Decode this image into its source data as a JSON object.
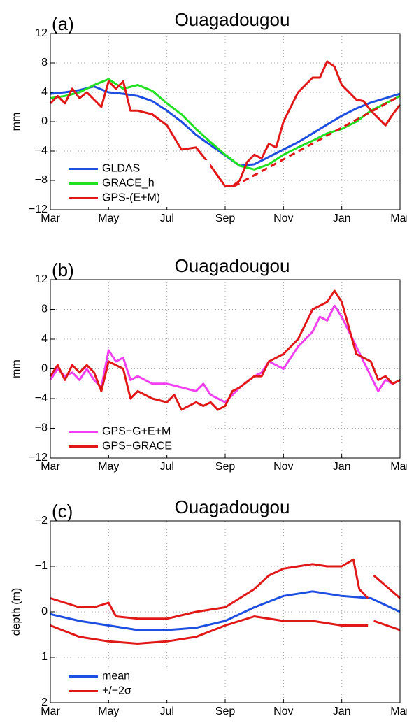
{
  "chart_data": [
    {
      "type": "line",
      "panel_label": "(a)",
      "title": "Ouagadougou",
      "ylabel": "mm",
      "xlim": [
        0,
        12
      ],
      "ylim": [
        -12,
        12
      ],
      "xticks": [
        {
          "value": 0,
          "label": "Mar"
        },
        {
          "value": 2,
          "label": "May"
        },
        {
          "value": 4,
          "label": "Jul"
        },
        {
          "value": 6,
          "label": "Sep"
        },
        {
          "value": 8,
          "label": "Nov"
        },
        {
          "value": 10,
          "label": "Jan"
        },
        {
          "value": 12,
          "label": "Mar"
        }
      ],
      "yticks": [
        {
          "value": -12,
          "label": "−12"
        },
        {
          "value": -8,
          "label": "−8"
        },
        {
          "value": -4,
          "label": "−4"
        },
        0,
        4,
        8,
        12
      ],
      "grid": true,
      "legend": "lower left",
      "series": [
        {
          "name": "GLDAS",
          "color": "#1f4fe0",
          "x": [
            0,
            0.5,
            1,
            1.5,
            2,
            2.5,
            3,
            3.5,
            4,
            4.5,
            5,
            5.5,
            6,
            6.5,
            7,
            7.5,
            8,
            8.5,
            9,
            9.5,
            10,
            10.5,
            11,
            11.5,
            12
          ],
          "values": [
            3.8,
            4.0,
            4.3,
            4.8,
            4.0,
            3.8,
            3.5,
            2.8,
            1.5,
            0,
            -1.8,
            -3.2,
            -4.6,
            -6.0,
            -5.8,
            -4.8,
            -3.8,
            -2.8,
            -1.6,
            -0.4,
            0.8,
            1.8,
            2.6,
            3.2,
            3.8
          ]
        },
        {
          "name": "GRACE_h",
          "color": "#22e022",
          "x": [
            0,
            0.5,
            1,
            1.5,
            2,
            2.5,
            3,
            3.5,
            4,
            4.5,
            5,
            5.5,
            6,
            6.5,
            7,
            7.5,
            8,
            8.5,
            9,
            9.5,
            10,
            10.5,
            11,
            11.5,
            12
          ],
          "values": [
            3.2,
            3.5,
            4.0,
            5.0,
            5.8,
            4.5,
            5.0,
            4.2,
            2.5,
            1.0,
            -1.0,
            -2.8,
            -4.5,
            -6.0,
            -6.5,
            -5.8,
            -4.5,
            -3.5,
            -2.6,
            -1.6,
            -1.0,
            0,
            1.5,
            2.5,
            3.5
          ]
        },
        {
          "name": "GPS-(E+M)",
          "color": "#e01818",
          "x": [
            0,
            0.25,
            0.5,
            0.75,
            1,
            1.25,
            1.5,
            1.75,
            2,
            2.25,
            2.5,
            2.75,
            3,
            3.5,
            4,
            4.5,
            5,
            5.5,
            6,
            6.25,
            6.5,
            6.75,
            7,
            7.25,
            7.5,
            7.75,
            8,
            8.5,
            9,
            9.25,
            9.5,
            9.75,
            10,
            10.5,
            10.75,
            11,
            11.25,
            11.5,
            11.75,
            12
          ],
          "values": [
            2.5,
            3.5,
            2.5,
            4.5,
            3.2,
            4.0,
            3.0,
            2.0,
            5.5,
            4.5,
            5.5,
            1.5,
            1.5,
            1.0,
            -0.5,
            -3.8,
            -3.5,
            -6.0,
            -8.8,
            -8.8,
            -8.0,
            -5.5,
            -4.5,
            -5.0,
            -3.0,
            -3.5,
            0,
            4,
            6,
            6,
            8.2,
            7.5,
            5,
            3,
            2.8,
            1.5,
            0.5,
            -0.5,
            1,
            2.3
          ]
        },
        {
          "color": "#e01818",
          "dashed": true,
          "x": [
            6.3,
            12
          ],
          "values": [
            -8.8,
            3.5
          ]
        }
      ]
    },
    {
      "type": "line",
      "panel_label": "(b)",
      "title": "Ouagadougou",
      "ylabel": "mm",
      "xlim": [
        0,
        12
      ],
      "ylim": [
        -12,
        12
      ],
      "xticks": [
        {
          "value": 0,
          "label": "Mar"
        },
        {
          "value": 2,
          "label": "May"
        },
        {
          "value": 4,
          "label": "Jul"
        },
        {
          "value": 6,
          "label": "Sep"
        },
        {
          "value": 8,
          "label": "Nov"
        },
        {
          "value": 10,
          "label": "Jan"
        },
        {
          "value": 12,
          "label": "Mar"
        }
      ],
      "yticks": [
        {
          "value": -12,
          "label": "−12"
        },
        {
          "value": -8,
          "label": "−8"
        },
        {
          "value": -4,
          "label": "−4"
        },
        0,
        4,
        8,
        12
      ],
      "grid": true,
      "legend": "lower left",
      "series": [
        {
          "name": "GPS−G+E+M",
          "color": "#f040f0",
          "x": [
            0,
            0.25,
            0.5,
            0.75,
            1,
            1.25,
            1.5,
            1.75,
            2,
            2.25,
            2.5,
            2.75,
            3,
            3.5,
            4,
            4.5,
            5,
            5.25,
            5.5,
            6,
            6.25,
            6.5,
            7,
            7.25,
            7.5,
            8,
            8.5,
            9,
            9.25,
            9.5,
            9.75,
            10,
            10.5,
            11,
            11.25,
            11.5,
            11.75,
            12
          ],
          "values": [
            -1.5,
            0,
            -1,
            -0.5,
            -1.5,
            0,
            -1.5,
            -2.5,
            2.5,
            1,
            1.5,
            -1.5,
            -1,
            -2,
            -2,
            -2.5,
            -3,
            -2,
            -3.5,
            -4.5,
            -3.5,
            -2.5,
            -1,
            -0.5,
            1,
            0,
            3,
            5,
            7,
            6.5,
            8.5,
            7,
            3,
            -1,
            -3,
            -1.5,
            -2,
            -1.5
          ]
        },
        {
          "name": "GPS−GRACE",
          "color": "#e01818",
          "x": [
            0,
            0.25,
            0.5,
            0.75,
            1,
            1.25,
            1.5,
            1.75,
            2,
            2.25,
            2.5,
            2.75,
            3,
            3.5,
            4,
            4.25,
            4.5,
            5,
            5.25,
            5.5,
            5.75,
            6,
            6.25,
            6.5,
            7,
            7.25,
            7.5,
            8,
            8.5,
            9,
            9.5,
            9.75,
            10,
            10.5,
            11,
            11.25,
            11.5,
            11.75,
            12
          ],
          "values": [
            -1,
            0.5,
            -1.5,
            0.5,
            -0.5,
            0.5,
            -0.5,
            -3,
            1,
            0.5,
            0,
            -4,
            -3,
            -4,
            -4.5,
            -3.5,
            -5.5,
            -4.5,
            -5,
            -4.5,
            -5.5,
            -5,
            -3,
            -2.5,
            -1,
            -1,
            1,
            2,
            4,
            8,
            9,
            10.5,
            9,
            2,
            1,
            -1.5,
            -1,
            -2,
            -1.5
          ]
        }
      ]
    },
    {
      "type": "line",
      "panel_label": "(c)",
      "title": "Ouagadougou",
      "ylabel": "depth (m)",
      "xlim": [
        0,
        12
      ],
      "ylim": [
        2,
        -2
      ],
      "y_inverted": true,
      "xticks": [
        {
          "value": 0,
          "label": "Mar"
        },
        {
          "value": 2,
          "label": "May"
        },
        {
          "value": 4,
          "label": "Jul"
        },
        {
          "value": 6,
          "label": "Sep"
        },
        {
          "value": 8,
          "label": "Nov"
        },
        {
          "value": 10,
          "label": "Jan"
        },
        {
          "value": 12,
          "label": "Mar"
        }
      ],
      "yticks": [
        {
          "value": -2,
          "label": "−2"
        },
        {
          "value": -1,
          "label": "−1"
        },
        0,
        1,
        2
      ],
      "grid": true,
      "legend": "lower left",
      "series": [
        {
          "name": "mean",
          "color": "#1f4fe0",
          "x": [
            0,
            1,
            2,
            3,
            4,
            5,
            6,
            7,
            8,
            9,
            10,
            11,
            12
          ],
          "values": [
            0.05,
            0.2,
            0.3,
            0.4,
            0.4,
            0.35,
            0.2,
            -0.1,
            -0.35,
            -0.45,
            -0.35,
            -0.3,
            0
          ]
        },
        {
          "name": "+/−2σ",
          "color": "#e01818",
          "x": [
            0,
            1,
            1.5,
            2,
            2.25,
            3,
            4,
            5,
            6,
            7,
            7.5,
            8,
            8.5,
            9,
            9.5,
            10,
            10.4,
            10.6,
            10.9,
            11,
            11.1,
            12
          ],
          "values": [
            -0.3,
            -0.1,
            -0.1,
            -0.2,
            0.1,
            0.15,
            0.15,
            0,
            -0.1,
            -0.5,
            -0.8,
            -0.95,
            -1.0,
            -1.05,
            -1.0,
            -1.0,
            -1.15,
            -0.5,
            -0.3,
            null,
            -0.8,
            -0.3
          ]
        },
        {
          "color": "#e01818",
          "x": [
            0,
            1,
            2,
            3,
            4,
            5,
            6,
            7,
            8,
            9,
            10,
            10.5,
            10.9,
            11,
            11.1,
            12
          ],
          "values": [
            0.3,
            0.55,
            0.65,
            0.7,
            0.65,
            0.55,
            0.3,
            0.1,
            0.2,
            0.2,
            0.3,
            0.3,
            0.3,
            null,
            0.2,
            0.4
          ]
        }
      ]
    }
  ]
}
